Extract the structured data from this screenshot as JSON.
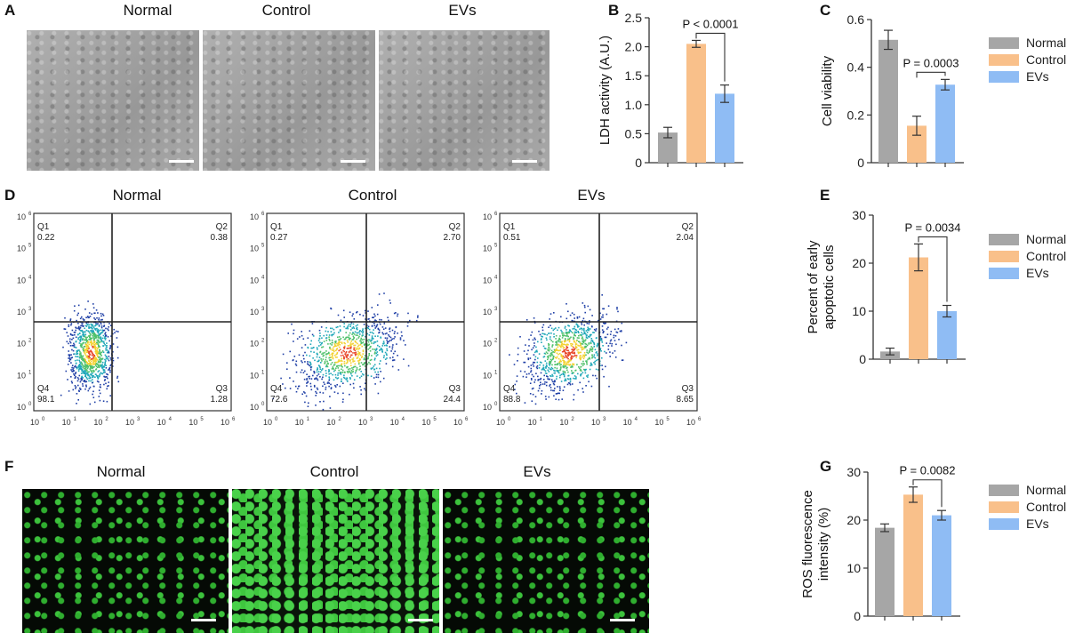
{
  "panels": {
    "A": {
      "label": "A",
      "titles": [
        "Normal",
        "Control",
        "EVs"
      ]
    },
    "B": {
      "label": "B"
    },
    "C": {
      "label": "C"
    },
    "D": {
      "label": "D",
      "titles": [
        "Normal",
        "Control",
        "EVs"
      ]
    },
    "E": {
      "label": "E"
    },
    "F": {
      "label": "F",
      "titles": [
        "Normal",
        "Control",
        "EVs"
      ]
    },
    "G": {
      "label": "G"
    }
  },
  "colors": {
    "normal": "#a6a6a6",
    "control": "#f9c08a",
    "evs": "#8fbcf4",
    "axis": "#333333"
  },
  "legend": [
    "Normal",
    "Control",
    "EVs"
  ],
  "flow_panels": [
    {
      "title": "Normal",
      "q1": {
        "name": "Q1",
        "value": "0.22"
      },
      "q2": {
        "name": "Q2",
        "value": "0.38"
      },
      "q3": {
        "name": "Q3",
        "value": "1.28"
      },
      "q4": {
        "name": "Q4",
        "value": "98.1"
      }
    },
    {
      "title": "Control",
      "q1": {
        "name": "Q1",
        "value": "0.27"
      },
      "q2": {
        "name": "Q2",
        "value": "2.70"
      },
      "q3": {
        "name": "Q3",
        "value": "24.4"
      },
      "q4": {
        "name": "Q4",
        "value": "72.6"
      }
    },
    {
      "title": "EVs",
      "q1": {
        "name": "Q1",
        "value": "0.51"
      },
      "q2": {
        "name": "Q2",
        "value": "2.04"
      },
      "q3": {
        "name": "Q3",
        "value": "8.65"
      },
      "q4": {
        "name": "Q4",
        "value": "88.8"
      }
    }
  ],
  "chart_data": [
    {
      "id": "B",
      "type": "bar",
      "categories": [
        "Normal",
        "Control",
        "EVs"
      ],
      "values": [
        0.52,
        2.05,
        1.19
      ],
      "errors": [
        0.09,
        0.06,
        0.15
      ],
      "ylabel": "LDH activity (A.U.)",
      "ylim": [
        0,
        2.5
      ],
      "yticks": [
        "0",
        "0.5",
        "1.0",
        "1.5",
        "2.0",
        "2.5"
      ],
      "ytick_values": [
        0,
        0.5,
        1.0,
        1.5,
        2.0,
        2.5
      ],
      "annotation": {
        "text": "P < 0.0001",
        "between": [
          1,
          2
        ]
      }
    },
    {
      "id": "C",
      "type": "bar",
      "categories": [
        "Normal",
        "Control",
        "EVs"
      ],
      "values": [
        0.515,
        0.155,
        0.327
      ],
      "errors": [
        0.04,
        0.04,
        0.022
      ],
      "ylabel": "Cell viability",
      "ylim": [
        0,
        0.6
      ],
      "yticks": [
        "0",
        "0.2",
        "0.4",
        "0.6"
      ],
      "ytick_values": [
        0,
        0.2,
        0.4,
        0.6
      ],
      "annotation": {
        "text": "P = 0.0003",
        "between": [
          1,
          2
        ]
      }
    },
    {
      "id": "E",
      "type": "bar",
      "categories": [
        "Normal",
        "Control",
        "EVs"
      ],
      "values": [
        1.6,
        21.2,
        10.0
      ],
      "errors": [
        0.7,
        2.8,
        1.2
      ],
      "ylabel": [
        "Percent of early",
        "apoptotic cells"
      ],
      "ylim": [
        0,
        30
      ],
      "yticks": [
        "0",
        "10",
        "20",
        "30"
      ],
      "ytick_values": [
        0,
        10,
        20,
        30
      ],
      "annotation": {
        "text": "P = 0.0034",
        "between": [
          1,
          2
        ]
      }
    },
    {
      "id": "G",
      "type": "bar",
      "categories": [
        "Normal",
        "Control",
        "EVs"
      ],
      "values": [
        18.4,
        25.3,
        21.0
      ],
      "errors": [
        0.8,
        1.6,
        1.0
      ],
      "ylabel": [
        "ROS fluorescence",
        "intensity (%)"
      ],
      "ylim": [
        0,
        30
      ],
      "yticks": [
        "0",
        "10",
        "20",
        "30"
      ],
      "ytick_values": [
        0,
        10,
        20,
        30
      ],
      "annotation": {
        "text": "P = 0.0082",
        "between": [
          1,
          2
        ]
      }
    }
  ],
  "flow_axis_ticks": [
    "10",
    "0",
    "10",
    "1",
    "10",
    "2",
    "10",
    "3",
    "10",
    "4",
    "10",
    "5",
    "10",
    "6"
  ]
}
